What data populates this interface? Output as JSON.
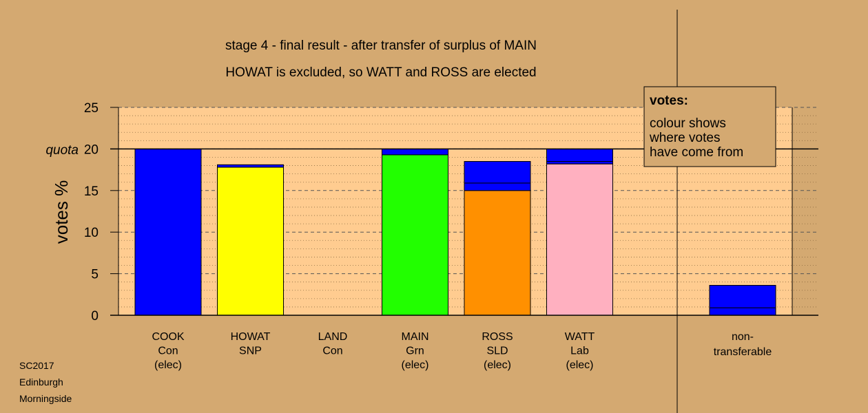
{
  "colors": {
    "background": "#d4a971",
    "plot_background": "#ffcc90",
    "Con": "#0000ff",
    "SNP": "#ffff00",
    "Grn": "#22ff00",
    "SLD": "#ff9000",
    "Lab": "#ffb0c0"
  },
  "chart_data": {
    "type": "bar",
    "stacked": true,
    "title": "stage 4 - final result - after transfer of surplus of MAIN",
    "subtitle": "HOWAT is excluded, so WATT and ROSS are elected",
    "ylabel": "votes %",
    "ylim": [
      0,
      25
    ],
    "yticks": [
      "0",
      "5",
      "10",
      "15",
      "20",
      "25"
    ],
    "quota": {
      "label": "quota",
      "value": 20
    },
    "grid": true,
    "categories": [
      {
        "name": "COOK",
        "party": "Con",
        "status": "(elec)"
      },
      {
        "name": "HOWAT",
        "party": "SNP",
        "status": ""
      },
      {
        "name": "LAND",
        "party": "Con",
        "status": ""
      },
      {
        "name": "MAIN",
        "party": "Grn",
        "status": "(elec)"
      },
      {
        "name": "ROSS",
        "party": "SLD",
        "status": "(elec)"
      },
      {
        "name": "WATT",
        "party": "Lab",
        "status": "(elec)"
      }
    ],
    "bars": [
      {
        "candidate": "COOK",
        "segments": [
          {
            "source": "Con",
            "value": 20.0
          }
        ]
      },
      {
        "candidate": "HOWAT",
        "segments": [
          {
            "source": "SNP",
            "value": 17.8
          },
          {
            "source": "Con",
            "value": 0.3
          }
        ]
      },
      {
        "candidate": "LAND",
        "segments": []
      },
      {
        "candidate": "MAIN",
        "segments": [
          {
            "source": "Grn",
            "value": 19.3
          },
          {
            "source": "Con",
            "value": 0.7
          }
        ]
      },
      {
        "candidate": "ROSS",
        "segments": [
          {
            "source": "SLD",
            "value": 15.0
          },
          {
            "source": "Con",
            "value": 0.9
          },
          {
            "source": "Con",
            "value": 2.6
          }
        ]
      },
      {
        "candidate": "WATT",
        "segments": [
          {
            "source": "Lab",
            "value": 18.2
          },
          {
            "source": "Con",
            "value": 0.3
          },
          {
            "source": "Con",
            "value": 1.5
          }
        ]
      }
    ],
    "nontransferable": {
      "label_line1": "non-",
      "label_line2": "transferable",
      "segments": [
        {
          "source": "Con",
          "value": 0.9
        },
        {
          "source": "Con",
          "value": 2.7
        }
      ]
    },
    "legend": {
      "position": "top-right",
      "title": "votes:",
      "lines": [
        "colour shows",
        "where votes",
        "have come from"
      ]
    }
  },
  "footer": {
    "line1": "SC2017",
    "line2": "Edinburgh",
    "line3": "Morningside"
  }
}
